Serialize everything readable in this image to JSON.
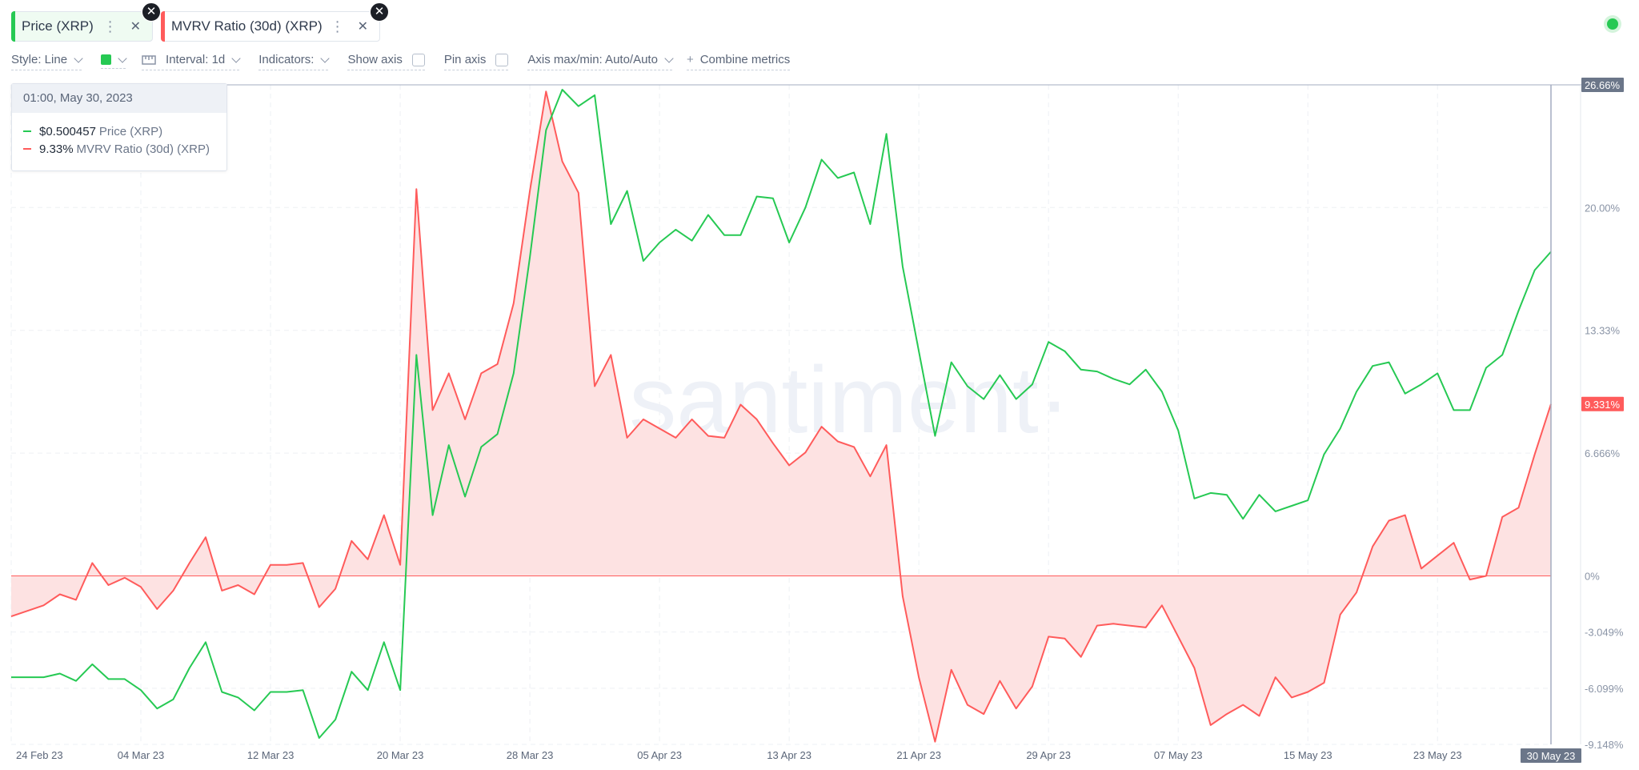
{
  "tabs": [
    {
      "label": "Price (XRP)",
      "color": "#26c953"
    },
    {
      "label": "MVRV Ratio (30d) (XRP)",
      "color": "#ff5b5b"
    }
  ],
  "toolbar": {
    "style": "Style: Line",
    "interval": "Interval: 1d",
    "indicators": "Indicators:",
    "show_axis": "Show axis",
    "pin_axis": "Pin axis",
    "axis_maxmin": "Axis max/min: Auto/Auto",
    "combine": "Combine metrics"
  },
  "tooltip": {
    "date": "01:00, May 30, 2023",
    "price_value": "$0.500457",
    "price_label": "Price (XRP)",
    "mvrv_value": "9.33%",
    "mvrv_label": "MVRV Ratio (30d) (XRP)"
  },
  "watermark": "·santiment·",
  "chart_data": {
    "type": "line",
    "y_axis": {
      "ticks": [
        "26.66%",
        "20.00%",
        "13.33%",
        "6.666%",
        "0%",
        "-3.049%",
        "-6.099%",
        "-9.148%"
      ],
      "tick_values": [
        26.66,
        20.0,
        13.33,
        6.666,
        0,
        -3.049,
        -6.099,
        -9.148
      ],
      "current_label": "9.331%",
      "ylim": [
        -9.148,
        26.66
      ]
    },
    "x_axis": {
      "ticks": [
        "24 Feb 23",
        "04 Mar 23",
        "12 Mar 23",
        "20 Mar 23",
        "28 Mar 23",
        "05 Apr 23",
        "13 Apr 23",
        "21 Apr 23",
        "29 Apr 23",
        "07 May 23",
        "15 May 23",
        "23 May 23"
      ],
      "tick_index": [
        0,
        8,
        16,
        24,
        32,
        40,
        48,
        56,
        64,
        72,
        80,
        88
      ],
      "current_label": "30 May 23",
      "current_index": 95
    },
    "series": [
      {
        "name": "MVRV Ratio (30d) (XRP)",
        "color": "#ff5b5b",
        "values": [
          -2.2,
          -1.9,
          -1.6,
          -1.0,
          -1.3,
          0.7,
          -0.5,
          -0.1,
          -0.6,
          -1.8,
          -0.8,
          0.7,
          2.1,
          -0.8,
          -0.5,
          -1.0,
          0.6,
          0.6,
          0.7,
          -1.7,
          -0.7,
          1.9,
          0.9,
          3.3,
          0.6,
          21.0,
          9.0,
          11.0,
          8.5,
          11.0,
          11.5,
          14.8,
          20.9,
          26.3,
          22.5,
          20.8,
          10.3,
          12.0,
          7.5,
          8.5,
          8.0,
          7.5,
          8.5,
          7.6,
          7.5,
          9.3,
          8.5,
          7.2,
          6.0,
          6.7,
          8.1,
          7.3,
          7.0,
          5.4,
          7.1,
          -1.1,
          -5.5,
          -9.0,
          -5.1,
          -7.0,
          -7.5,
          -5.7,
          -7.2,
          -6.0,
          -3.3,
          -3.4,
          -4.4,
          -2.7,
          -2.6,
          -2.7,
          -2.8,
          -1.6,
          -3.3,
          -5.0,
          -8.1,
          -7.5,
          -7.0,
          -7.6,
          -5.5,
          -6.6,
          -6.3,
          -5.8,
          -2.1,
          -0.9,
          1.6,
          3.0,
          3.3,
          0.4,
          1.1,
          1.8,
          -0.2,
          0.0,
          3.2,
          3.7,
          6.6,
          9.33
        ]
      },
      {
        "name": "Price (XRP)",
        "values": [
          -5.5,
          -5.5,
          -5.5,
          -5.3,
          -5.7,
          -4.8,
          -5.6,
          -5.6,
          -6.2,
          -7.2,
          -6.7,
          -5.0,
          -3.6,
          -6.3,
          -6.6,
          -7.3,
          -6.3,
          -6.3,
          -6.2,
          -8.8,
          -7.8,
          -5.2,
          -6.2,
          -3.6,
          -6.2,
          12.0,
          3.3,
          7.1,
          4.3,
          7.0,
          7.7,
          11.0,
          17.3,
          24.2,
          26.4,
          25.5,
          26.1,
          19.1,
          20.9,
          17.1,
          18.1,
          18.8,
          18.2,
          19.6,
          18.5,
          18.5,
          20.6,
          20.5,
          18.1,
          20.0,
          22.6,
          21.6,
          21.9,
          19.1,
          24.0,
          16.8,
          12.2,
          7.6,
          11.6,
          10.3,
          9.6,
          10.9,
          9.6,
          10.4,
          12.7,
          12.2,
          11.2,
          11.1,
          10.7,
          10.4,
          11.2,
          10.0,
          7.9,
          4.2,
          4.5,
          4.4,
          3.1,
          4.4,
          3.5,
          3.8,
          4.1,
          6.6,
          8.0,
          10.0,
          11.4,
          11.6,
          9.9,
          10.4,
          11.0,
          9.0,
          9.0,
          11.3,
          12.0,
          14.4,
          16.6,
          17.6
        ]
      }
    ],
    "series_color_price": "#26c953",
    "zero_line_color": "#ff5b5b",
    "area_fill": "#fde2e2",
    "grid": true
  }
}
